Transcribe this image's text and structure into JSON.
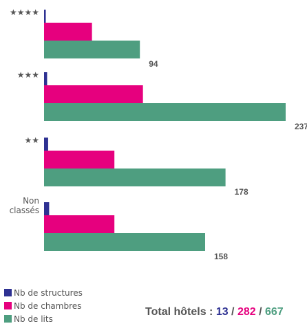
{
  "chart_data": {
    "type": "bar",
    "orientation": "horizontal",
    "categories": [
      "★★★★",
      "★★★",
      "★★",
      "Non classés"
    ],
    "series": [
      {
        "name": "Nb de structures",
        "color": "#2e3192",
        "values": [
          1,
          3,
          4,
          5
        ]
      },
      {
        "name": "Nb de chambres",
        "color": "#e6007e",
        "values": [
          47,
          97,
          69,
          69
        ]
      },
      {
        "name": "Nb de lits",
        "color": "#4e9e80",
        "values": [
          94,
          237,
          178,
          158
        ]
      }
    ],
    "xlim": [
      0,
      237
    ],
    "grid": false,
    "legend_position": "bottom-left",
    "total": {
      "label": "Total hôtels : ",
      "structures": "13",
      "chambres": "282",
      "lits": "667",
      "separator": " / "
    }
  }
}
